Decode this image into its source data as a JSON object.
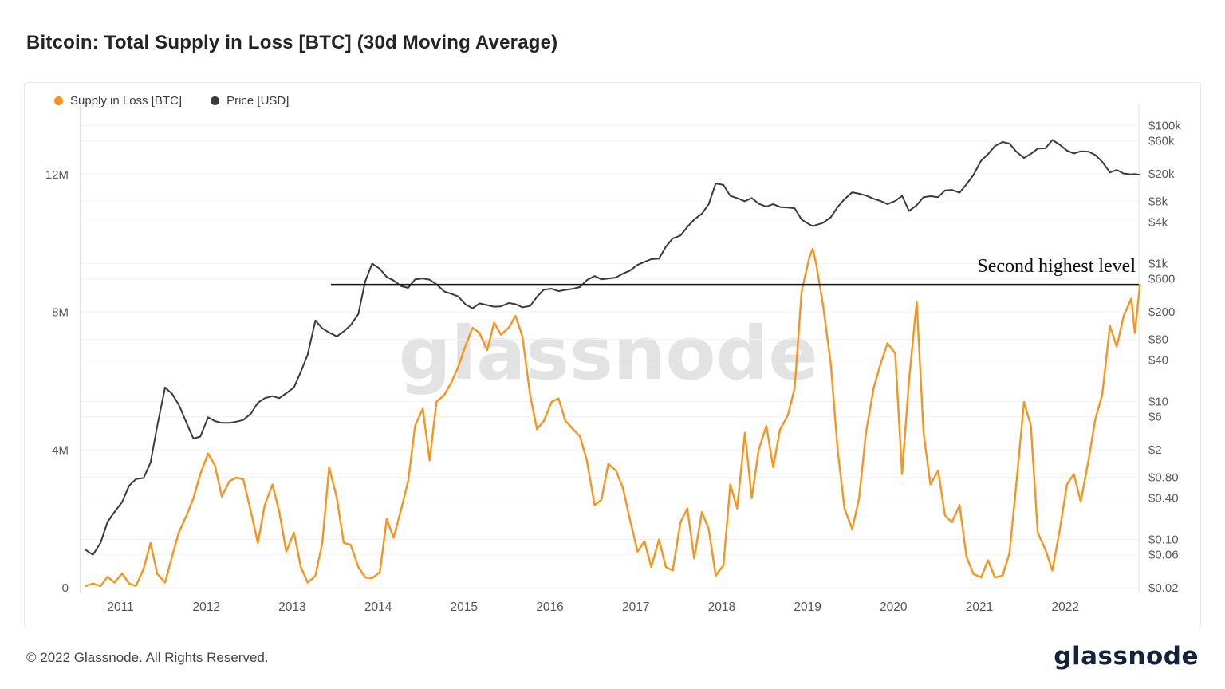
{
  "page": {
    "title": "Bitcoin: Total Supply in Loss [BTC] (30d Moving Average)",
    "watermark": "glassnode",
    "footer_copyright": "© 2022 Glassnode. All Rights Reserved.",
    "footer_brand": "glassnode"
  },
  "legend": [
    {
      "label": "Supply in Loss [BTC]",
      "color": "#f7941d"
    },
    {
      "label": "Price [USD]",
      "color": "#3a3a3a"
    }
  ],
  "annotation": {
    "text": "Second highest level",
    "x_start_year": 2013.45,
    "y_supply_millions": 8.8,
    "line_color": "#141414"
  },
  "colors": {
    "supply_line": "#f7941d",
    "price_line": "#3a3a3a",
    "gridline": "#f2f2f2",
    "axis_border": "#e3e3e3",
    "watermark": "#e3e3e3"
  },
  "chart_data": {
    "type": "line",
    "title": "Bitcoin: Total Supply in Loss [BTC] (30d Moving Average)",
    "grid": true,
    "legend_position": "top-left",
    "x_unit": "year",
    "x_range": [
      2010.55,
      2022.9
    ],
    "x_ticks": [
      2011,
      2012,
      2013,
      2014,
      2015,
      2016,
      2017,
      2018,
      2019,
      2020,
      2021,
      2022
    ],
    "left_axis": {
      "label": "Supply in Loss [BTC]",
      "scale": "linear",
      "range_millions": [
        0,
        14
      ],
      "ticks": [
        {
          "value_millions": 0,
          "label": "0"
        },
        {
          "value_millions": 4,
          "label": "4M"
        },
        {
          "value_millions": 8,
          "label": "8M"
        },
        {
          "value_millions": 12,
          "label": "12M"
        }
      ]
    },
    "right_axis": {
      "label": "Price [USD]",
      "scale": "log",
      "ticks": [
        {
          "value": 100000,
          "label": "$100k"
        },
        {
          "value": 60000,
          "label": "$60k"
        },
        {
          "value": 20000,
          "label": "$20k"
        },
        {
          "value": 8000,
          "label": "$8k"
        },
        {
          "value": 4000,
          "label": "$4k"
        },
        {
          "value": 1000,
          "label": "$1k"
        },
        {
          "value": 600,
          "label": "$600"
        },
        {
          "value": 200,
          "label": "$200"
        },
        {
          "value": 80,
          "label": "$80"
        },
        {
          "value": 40,
          "label": "$40"
        },
        {
          "value": 10,
          "label": "$10"
        },
        {
          "value": 6,
          "label": "$6"
        },
        {
          "value": 2,
          "label": "$2"
        },
        {
          "value": 0.8,
          "label": "$0.80"
        },
        {
          "value": 0.4,
          "label": "$0.40"
        },
        {
          "value": 0.1,
          "label": "$0.10"
        },
        {
          "value": 0.06,
          "label": "$0.06"
        },
        {
          "value": 0.02,
          "label": "$0.02"
        }
      ]
    },
    "x": [
      2010.6,
      2010.68,
      2010.77,
      2010.85,
      2010.93,
      2011.02,
      2011.1,
      2011.18,
      2011.27,
      2011.35,
      2011.43,
      2011.52,
      2011.6,
      2011.68,
      2011.77,
      2011.85,
      2011.93,
      2012.02,
      2012.1,
      2012.18,
      2012.27,
      2012.35,
      2012.43,
      2012.52,
      2012.6,
      2012.68,
      2012.77,
      2012.85,
      2012.93,
      2013.02,
      2013.1,
      2013.18,
      2013.27,
      2013.35,
      2013.43,
      2013.52,
      2013.6,
      2013.68,
      2013.77,
      2013.85,
      2013.93,
      2014.02,
      2014.1,
      2014.18,
      2014.27,
      2014.35,
      2014.43,
      2014.52,
      2014.6,
      2014.68,
      2014.77,
      2014.85,
      2014.93,
      2015.02,
      2015.1,
      2015.18,
      2015.27,
      2015.35,
      2015.43,
      2015.52,
      2015.6,
      2015.68,
      2015.77,
      2015.85,
      2015.93,
      2016.02,
      2016.1,
      2016.18,
      2016.27,
      2016.35,
      2016.43,
      2016.52,
      2016.6,
      2016.68,
      2016.77,
      2016.85,
      2016.93,
      2017.02,
      2017.1,
      2017.18,
      2017.27,
      2017.35,
      2017.43,
      2017.52,
      2017.6,
      2017.68,
      2017.77,
      2017.85,
      2017.93,
      2018.02,
      2018.1,
      2018.18,
      2018.27,
      2018.35,
      2018.43,
      2018.52,
      2018.6,
      2018.68,
      2018.77,
      2018.85,
      2018.93,
      2019.02,
      2019.06,
      2019.1,
      2019.18,
      2019.27,
      2019.35,
      2019.43,
      2019.52,
      2019.6,
      2019.68,
      2019.77,
      2019.85,
      2019.93,
      2020.02,
      2020.1,
      2020.18,
      2020.27,
      2020.35,
      2020.43,
      2020.52,
      2020.6,
      2020.68,
      2020.77,
      2020.85,
      2020.93,
      2021.02,
      2021.1,
      2021.18,
      2021.27,
      2021.35,
      2021.43,
      2021.52,
      2021.6,
      2021.68,
      2021.77,
      2021.85,
      2021.93,
      2022.02,
      2022.1,
      2022.18,
      2022.27,
      2022.35,
      2022.43,
      2022.52,
      2022.6,
      2022.68,
      2022.77,
      2022.81,
      2022.87
    ],
    "series": [
      {
        "name": "Supply in Loss [BTC]",
        "axis": "left",
        "unit": "million BTC",
        "color": "#f7941d",
        "values": [
          0.05,
          0.12,
          0.05,
          0.32,
          0.15,
          0.42,
          0.12,
          0.05,
          0.55,
          1.3,
          0.4,
          0.15,
          0.9,
          1.6,
          2.1,
          2.6,
          3.3,
          3.9,
          3.55,
          2.65,
          3.1,
          3.2,
          3.15,
          2.2,
          1.3,
          2.4,
          3.0,
          2.2,
          1.05,
          1.6,
          0.6,
          0.15,
          0.35,
          1.3,
          3.5,
          2.6,
          1.3,
          1.25,
          0.6,
          0.3,
          0.28,
          0.45,
          2.0,
          1.45,
          2.3,
          3.1,
          4.7,
          5.2,
          3.7,
          5.4,
          5.6,
          5.95,
          6.4,
          7.05,
          7.55,
          7.4,
          6.9,
          7.7,
          7.35,
          7.55,
          7.9,
          7.3,
          5.6,
          4.6,
          4.85,
          5.4,
          5.5,
          4.85,
          4.6,
          4.4,
          3.7,
          2.4,
          2.55,
          3.6,
          3.4,
          2.9,
          2.0,
          1.05,
          1.35,
          0.6,
          1.4,
          0.6,
          0.5,
          1.9,
          2.3,
          0.85,
          2.2,
          1.7,
          0.35,
          0.65,
          3.0,
          2.3,
          4.5,
          2.6,
          4.0,
          4.7,
          3.5,
          4.6,
          5.0,
          5.8,
          8.6,
          9.6,
          9.85,
          9.4,
          8.2,
          6.5,
          4.0,
          2.3,
          1.7,
          2.6,
          4.5,
          5.8,
          6.5,
          7.1,
          6.8,
          3.3,
          6.0,
          8.3,
          4.5,
          3.0,
          3.4,
          2.1,
          1.9,
          2.4,
          0.9,
          0.4,
          0.3,
          0.8,
          0.3,
          0.35,
          1.0,
          3.0,
          5.4,
          4.7,
          1.6,
          1.1,
          0.5,
          1.6,
          3.0,
          3.3,
          2.5,
          3.7,
          4.9,
          5.6,
          7.6,
          7.0,
          7.9,
          8.4,
          7.4,
          8.8
        ]
      },
      {
        "name": "Price [USD]",
        "axis": "right",
        "unit": "USD",
        "color": "#3a3a3a",
        "values": [
          0.07,
          0.06,
          0.09,
          0.18,
          0.25,
          0.35,
          0.6,
          0.75,
          0.78,
          1.3,
          4.5,
          16,
          13,
          9,
          4.9,
          2.9,
          3.1,
          5.9,
          5.2,
          4.9,
          4.9,
          5.1,
          5.4,
          6.7,
          9.6,
          11.2,
          12.0,
          11.2,
          13.2,
          16,
          27,
          48,
          150,
          115,
          100,
          88,
          104,
          128,
          185,
          550,
          1000,
          840,
          640,
          570,
          470,
          445,
          590,
          610,
          585,
          500,
          395,
          365,
          335,
          255,
          225,
          265,
          250,
          237,
          240,
          268,
          258,
          232,
          243,
          330,
          420,
          432,
          398,
          416,
          432,
          458,
          575,
          660,
          592,
          607,
          628,
          715,
          790,
          960,
          1060,
          1160,
          1180,
          1750,
          2320,
          2550,
          3400,
          4350,
          5300,
          7300,
          14500,
          13800,
          9600,
          8900,
          8000,
          8900,
          7400,
          6700,
          7300,
          6600,
          6500,
          6350,
          4350,
          3700,
          3500,
          3620,
          3900,
          4700,
          6600,
          8600,
          10800,
          10300,
          9700,
          8700,
          8100,
          7300,
          8100,
          9600,
          5800,
          7000,
          9200,
          9500,
          9200,
          11500,
          11700,
          10700,
          14100,
          19200,
          31000,
          38500,
          50500,
          58000,
          55000,
          42000,
          34000,
          39000,
          46500,
          47000,
          62000,
          53500,
          43500,
          39500,
          42500,
          42000,
          37500,
          30000,
          21000,
          22800,
          20200,
          19600,
          19900,
          19300
        ]
      }
    ]
  }
}
